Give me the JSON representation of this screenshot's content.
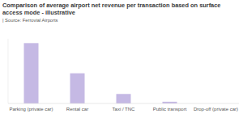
{
  "chart_data": {
    "type": "bar",
    "title": "Comparison of average airport net revenue per transaction based on surface access mode - illustrative",
    "subtitle": "| Source: Ferrovial Airports",
    "categories": [
      "Parking (private car)",
      "Rental car",
      "Taxi / TNC",
      "Public transport",
      "Drop-off (private car)"
    ],
    "values": [
      70,
      35,
      11,
      2,
      0
    ],
    "color": "#c5b9e4",
    "ylim": [
      0,
      75
    ],
    "tick_labels": "x",
    "grid": false
  }
}
